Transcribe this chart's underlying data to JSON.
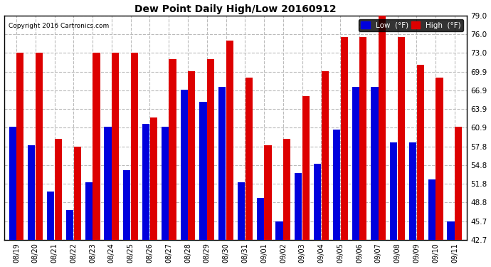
{
  "title": "Dew Point Daily High/Low 20160912",
  "copyright": "Copyright 2016 Cartronics.com",
  "legend_low": "Low  (°F)",
  "legend_high": "High  (°F)",
  "color_low": "#0000dd",
  "color_high": "#dd0000",
  "background_color": "#ffffff",
  "grid_color": "#bbbbbb",
  "ylim": [
    42.7,
    79.0
  ],
  "yticks": [
    42.7,
    45.7,
    48.8,
    51.8,
    54.8,
    57.8,
    60.9,
    63.9,
    66.9,
    69.9,
    73.0,
    76.0,
    79.0
  ],
  "dates": [
    "08/19",
    "08/20",
    "08/21",
    "08/22",
    "08/23",
    "08/24",
    "08/25",
    "08/26",
    "08/27",
    "08/28",
    "08/29",
    "08/30",
    "08/31",
    "09/01",
    "09/02",
    "09/03",
    "09/04",
    "09/05",
    "09/06",
    "09/07",
    "09/08",
    "09/09",
    "09/10",
    "09/11"
  ],
  "high_values": [
    73.0,
    73.0,
    59.0,
    57.8,
    73.0,
    73.0,
    73.0,
    62.5,
    72.0,
    70.0,
    72.0,
    75.0,
    69.0,
    58.0,
    59.0,
    66.0,
    70.0,
    75.5,
    75.5,
    79.0,
    75.5,
    71.0,
    69.0,
    61.0
  ],
  "low_values": [
    61.0,
    58.0,
    50.5,
    47.5,
    52.0,
    61.0,
    54.0,
    61.5,
    61.0,
    67.0,
    65.0,
    67.5,
    52.0,
    49.5,
    45.7,
    53.5,
    55.0,
    60.5,
    67.5,
    67.5,
    58.5,
    58.5,
    52.5,
    45.7
  ],
  "bar_bottom": 42.7,
  "figsize": [
    6.9,
    3.75
  ],
  "dpi": 100
}
